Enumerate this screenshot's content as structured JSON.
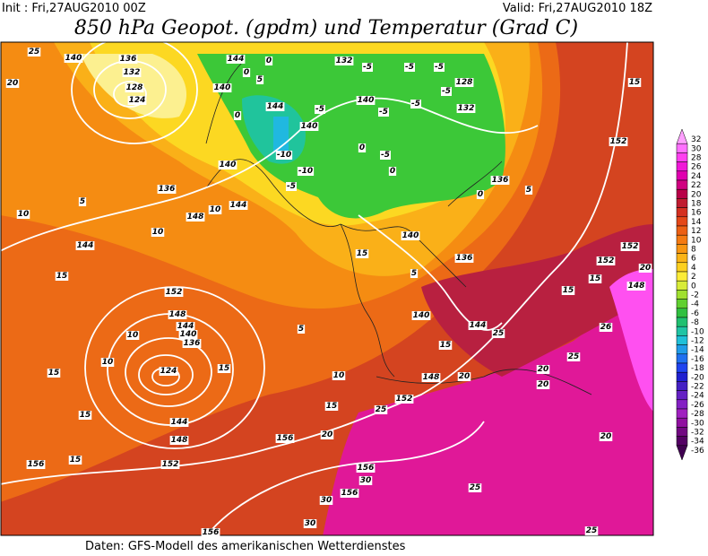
{
  "header": {
    "init": "Init : Fri,27AUG2010 00Z",
    "valid": "Valid: Fri,27AUG2010 18Z",
    "title": "850 hPa Geopot. (gpdm) und Temperatur (Grad C)"
  },
  "legend": {
    "values": [
      32,
      30,
      28,
      26,
      24,
      22,
      20,
      18,
      16,
      14,
      12,
      10,
      8,
      6,
      4,
      2,
      0,
      -2,
      -4,
      -6,
      -8,
      -10,
      -12,
      -14,
      -16,
      -18,
      -20,
      -22,
      -24,
      -26,
      -28,
      -30,
      -32,
      -34,
      -36
    ],
    "colors": [
      "#ffa0ff",
      "#ff70ff",
      "#ff40f0",
      "#f018d8",
      "#e000b0",
      "#d00080",
      "#b80048",
      "#c01c30",
      "#d43020",
      "#e44818",
      "#ec6014",
      "#f47a12",
      "#f89612",
      "#fab418",
      "#fcd020",
      "#fcec38",
      "#d8ec38",
      "#a0e030",
      "#60d030",
      "#30c040",
      "#20c070",
      "#20c4a4",
      "#20c0d8",
      "#209ce8",
      "#2070f0",
      "#2044f0",
      "#2020d0",
      "#4420c4",
      "#6420c4",
      "#8420c4",
      "#a020c0",
      "#9010a0",
      "#720882",
      "#540064",
      "#400050"
    ]
  },
  "map": {
    "contour_labels": [
      "140",
      "136",
      "132",
      "128",
      "124",
      "20",
      "25",
      "144",
      "0",
      "0",
      "5",
      "140",
      "0",
      "144",
      "140",
      "-5",
      "-10",
      "-10",
      "-5",
      "140",
      "132",
      "-5",
      "-5",
      "-5",
      "128",
      "-5",
      "-5",
      "132",
      "-5",
      "140",
      "0",
      "-5",
      "0",
      "136",
      "5",
      "0",
      "136",
      "148",
      "10",
      "144",
      "10",
      "5",
      "10",
      "144",
      "15",
      "152",
      "148",
      "144",
      "140",
      "136",
      "10",
      "10",
      "124",
      "15",
      "15",
      "15",
      "144",
      "148",
      "152",
      "156",
      "156",
      "20",
      "15",
      "25",
      "152",
      "148",
      "20",
      "10",
      "5",
      "140",
      "144",
      "15",
      "25",
      "20",
      "20",
      "25",
      "26",
      "15",
      "15",
      "148",
      "152",
      "152",
      "20",
      "152",
      "15",
      "140",
      "136",
      "5",
      "15",
      "25",
      "156",
      "30",
      "30",
      "156",
      "30",
      "25",
      "20",
      "156",
      "15"
    ]
  },
  "footer": "Daten: GFS-Modell des amerikanischen Wetterdienstes"
}
